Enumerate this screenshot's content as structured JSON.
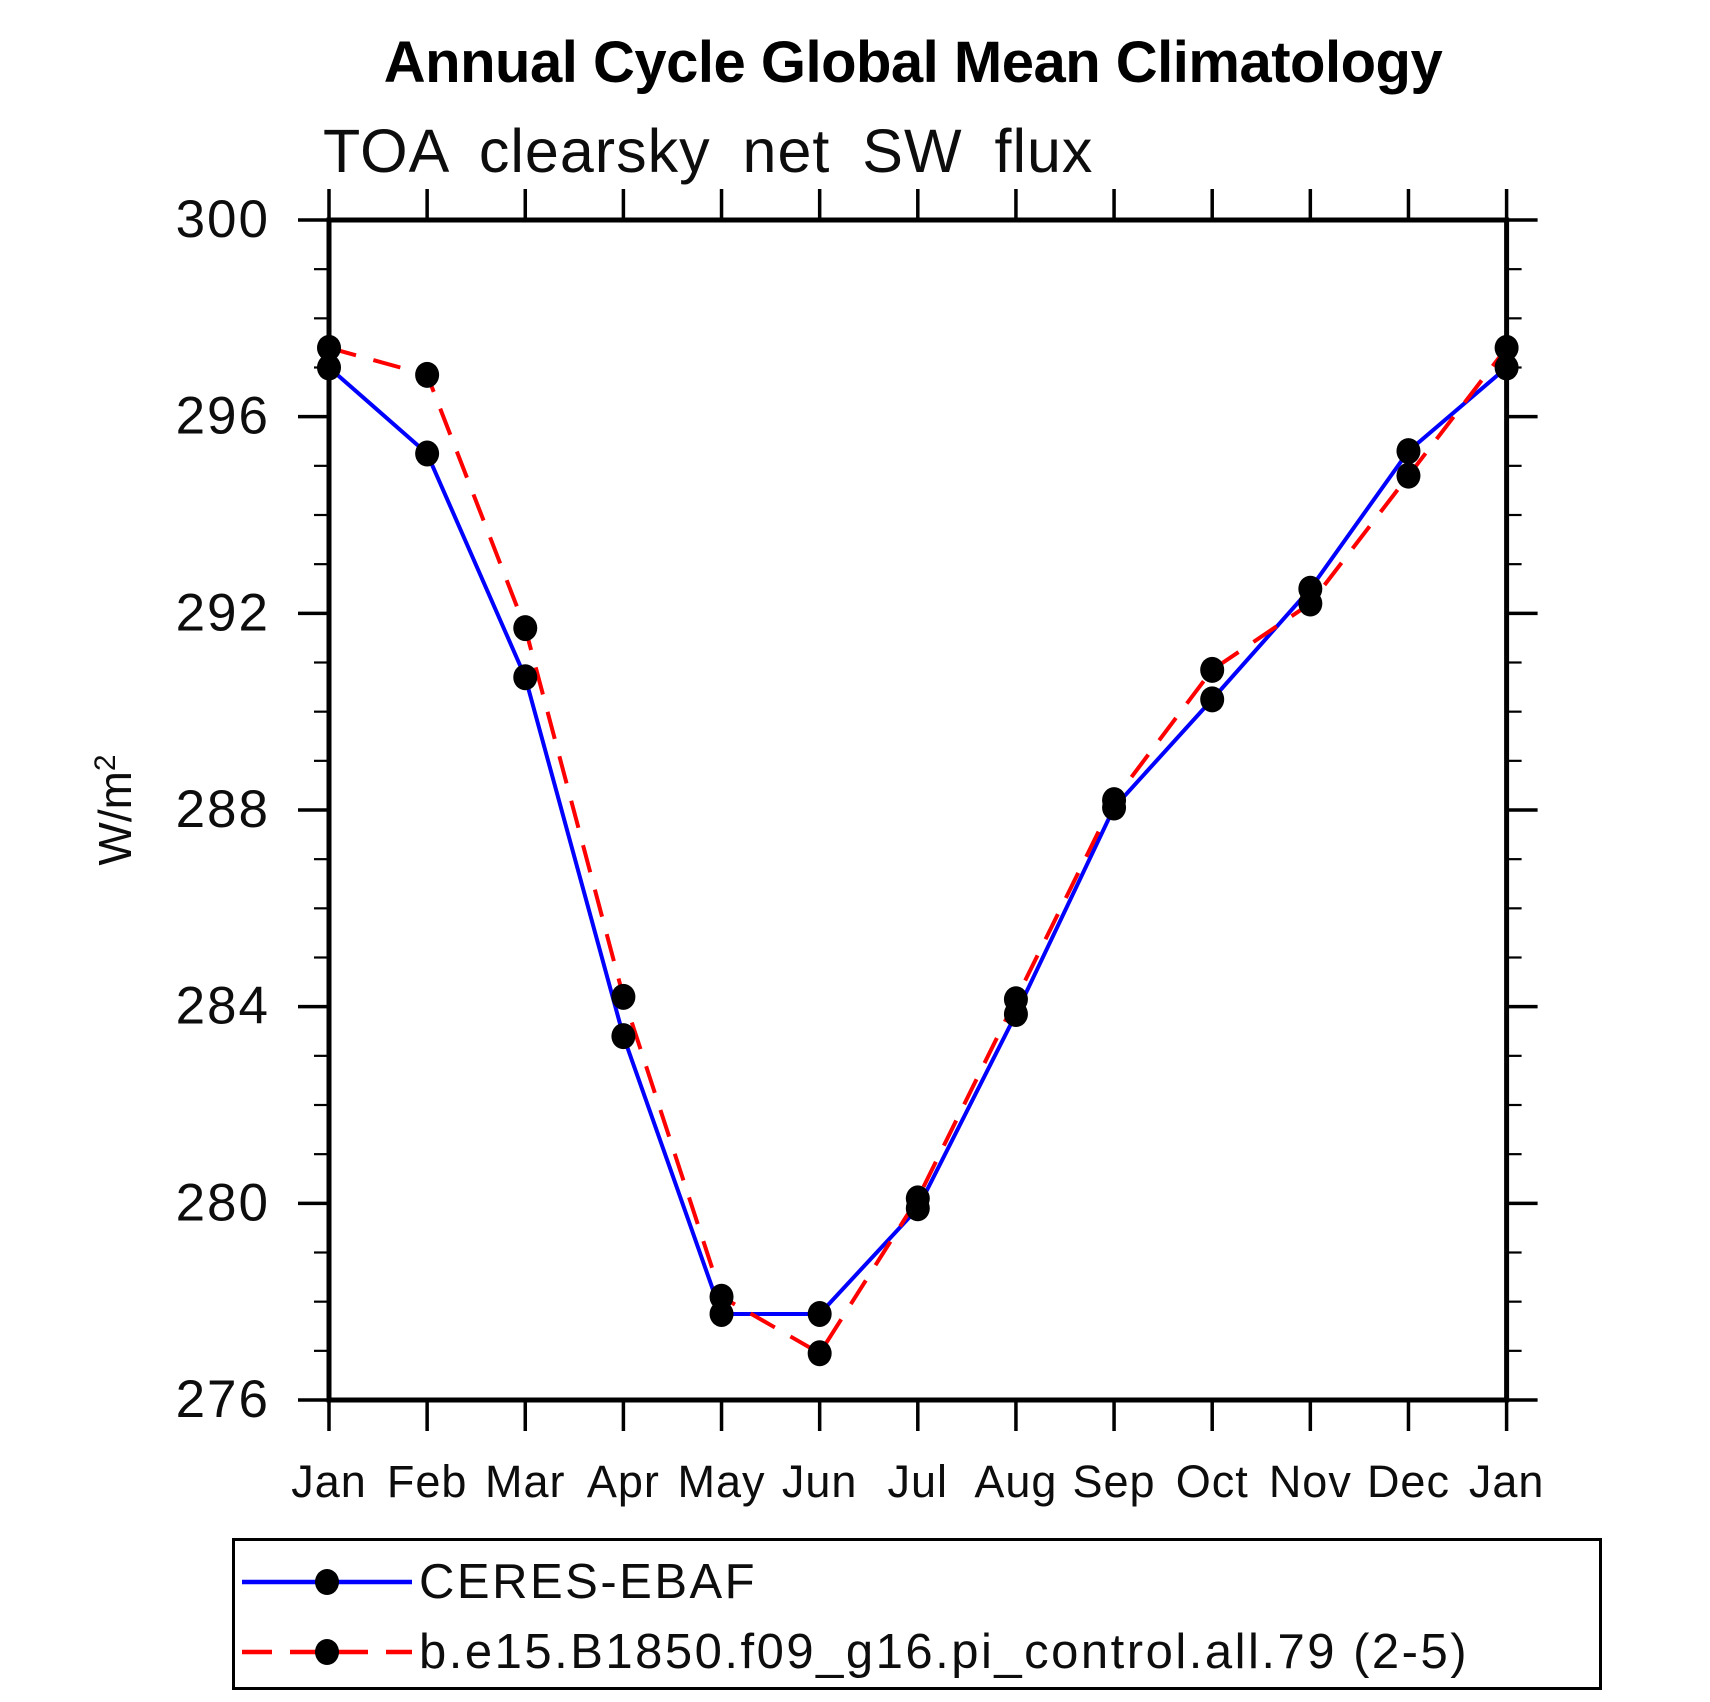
{
  "chart_data": {
    "type": "line",
    "title": "Annual Cycle Global Mean Climatology",
    "subtitle": "TOA clearsky net SW flux",
    "ylabel": "W/m²",
    "ylabel_base": "W/m",
    "ylabel_exp": "2",
    "x_categories": [
      "Jan",
      "Feb",
      "Mar",
      "Apr",
      "May",
      "Jun",
      "Jul",
      "Aug",
      "Sep",
      "Oct",
      "Nov",
      "Dec",
      "Jan"
    ],
    "ylim": [
      276,
      300
    ],
    "ytick_major": [
      276,
      280,
      284,
      288,
      292,
      296,
      300
    ],
    "ytick_minor_step": 1,
    "grid": false,
    "legend_position": "bottom-left-box",
    "axis_color": "#000000",
    "series": [
      {
        "name": "CERES-EBAF",
        "color": "#0000ff",
        "style": "solid",
        "marker": "circle",
        "marker_color": "#000000",
        "values": [
          297.0,
          295.25,
          290.7,
          283.4,
          277.75,
          277.75,
          279.9,
          283.85,
          288.05,
          290.25,
          292.5,
          295.3,
          297.0
        ]
      },
      {
        "name": "b.e15.B1850.f09_g16.pi_control.all.79 (2-5)",
        "color": "#ff0000",
        "style": "dashed",
        "marker": "circle",
        "marker_color": "#000000",
        "values": [
          297.4,
          296.85,
          291.7,
          284.2,
          278.1,
          276.95,
          280.1,
          284.15,
          288.2,
          290.85,
          292.2,
          294.8,
          297.4
        ]
      }
    ]
  }
}
